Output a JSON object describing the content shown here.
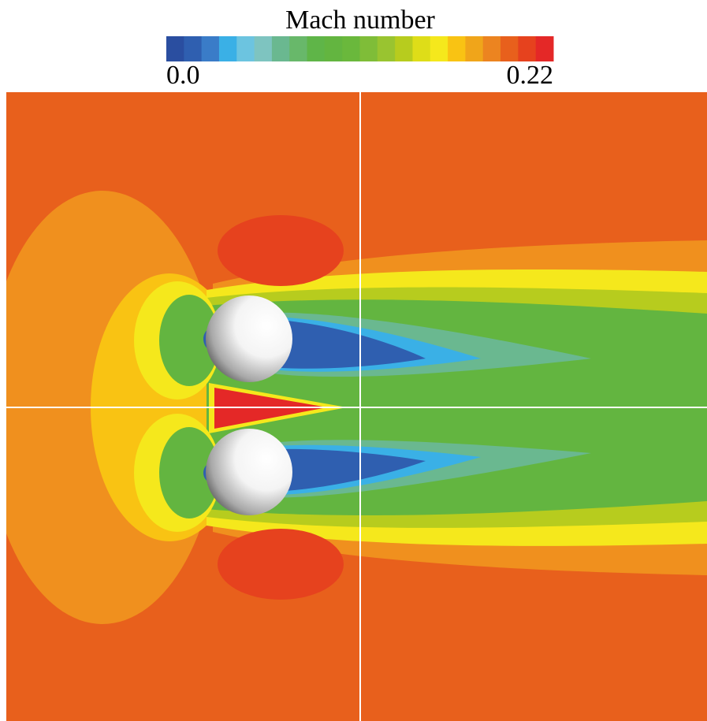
{
  "colorbar": {
    "title": "Mach number",
    "lim": [
      0,
      0.22
    ],
    "ticks": [
      {
        "value": 0,
        "label": "0.0"
      },
      0.22
    ],
    "colors": [
      "#2a4ea0",
      "#2f5fb0",
      "#3a7cc8",
      "#3ab0e6",
      "#6cc4e0",
      "#7ec4c0",
      "#6ab890",
      "#68b86a",
      "#5fb548",
      "#63b540",
      "#6ab83c",
      "#7fbd38",
      "#99c430",
      "#b7cc1e",
      "#dedd18",
      "#f5e81c",
      "#f9c313",
      "#f0a51a",
      "#ec8420",
      "#e8601c",
      "#e6421e",
      "#e42827"
    ]
  }
}
